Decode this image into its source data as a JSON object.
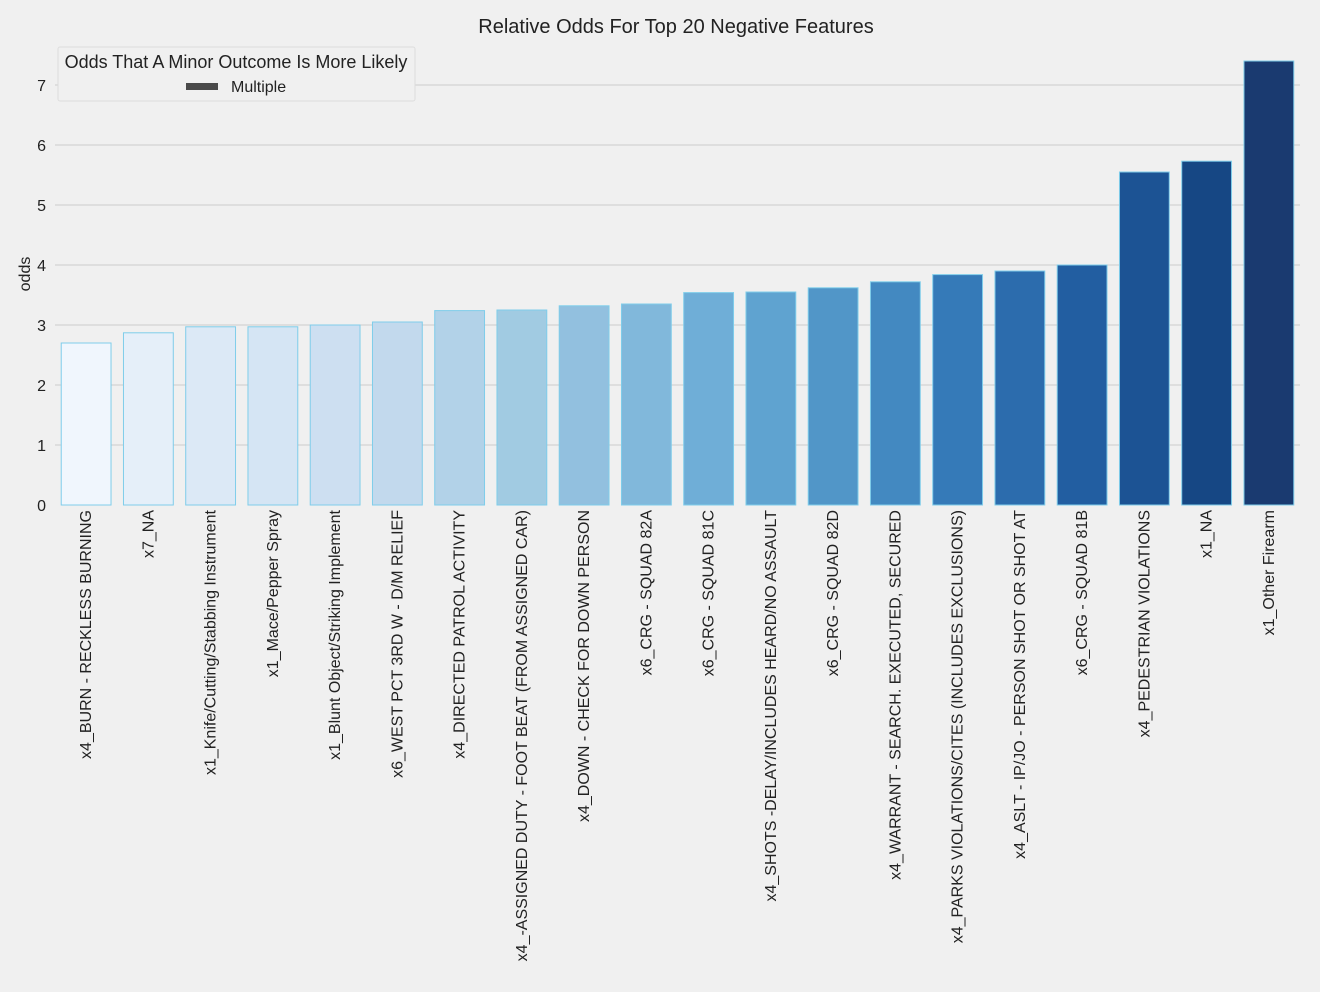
{
  "chart_data": {
    "type": "bar",
    "title": "Relative Odds For Top 20 Negative Features",
    "xlabel": "",
    "ylabel": "odds",
    "ylim": [
      0,
      7.6
    ],
    "yticks": [
      0,
      1,
      2,
      3,
      4,
      5,
      6,
      7
    ],
    "grid": true,
    "legend": {
      "title": "Odds That A Minor Outcome Is More Likely",
      "entries": [
        "Multiple"
      ],
      "placement": "top-left"
    },
    "categories": [
      "x4_BURN - RECKLESS BURNING",
      "x7_NA",
      "x1_Knife/Cutting/Stabbing Instrument",
      "x1_Mace/Pepper Spray",
      "x1_Blunt Object/Striking Implement",
      "x6_WEST PCT 3RD W - D/M RELIEF",
      "x4_DIRECTED PATROL ACTIVITY",
      "x4_-ASSIGNED DUTY - FOOT BEAT (FROM ASSIGNED CAR)",
      "x4_DOWN - CHECK FOR DOWN PERSON",
      "x6_CRG - SQUAD 82A",
      "x6_CRG - SQUAD 81C",
      "x4_SHOTS -DELAY/INCLUDES HEARD/NO ASSAULT",
      "x6_CRG - SQUAD 82D",
      "x4_WARRANT - SEARCH. EXECUTED, SECURED",
      "x4_PARKS VIOLATIONS/CITES (INCLUDES EXCLUSIONS)",
      "x4_ASLT - IP/JO - PERSON SHOT OR SHOT AT",
      "x6_CRG - SQUAD 81B",
      "x4_PEDESTRIAN VIOLATIONS",
      "x1_NA",
      "x1_Other Firearm"
    ],
    "values": [
      2.7,
      2.87,
      2.97,
      2.97,
      3.0,
      3.05,
      3.24,
      3.25,
      3.32,
      3.35,
      3.54,
      3.55,
      3.62,
      3.72,
      3.84,
      3.9,
      4.0,
      5.55,
      5.73,
      7.4
    ],
    "colors": [
      "#f0f6fd",
      "#e5eff9",
      "#dce9f6",
      "#d5e5f4",
      "#cddff1",
      "#c2d9ed",
      "#b2d2e8",
      "#a1cbe2",
      "#92c0df",
      "#81b8db",
      "#6faed7",
      "#5fa3d0",
      "#5196c8",
      "#4389c1",
      "#357ab8",
      "#2c6cad",
      "#225ea1",
      "#1c5394",
      "#164784",
      "#1a3a70"
    ],
    "bar_edge_color": "#7fcdea"
  }
}
